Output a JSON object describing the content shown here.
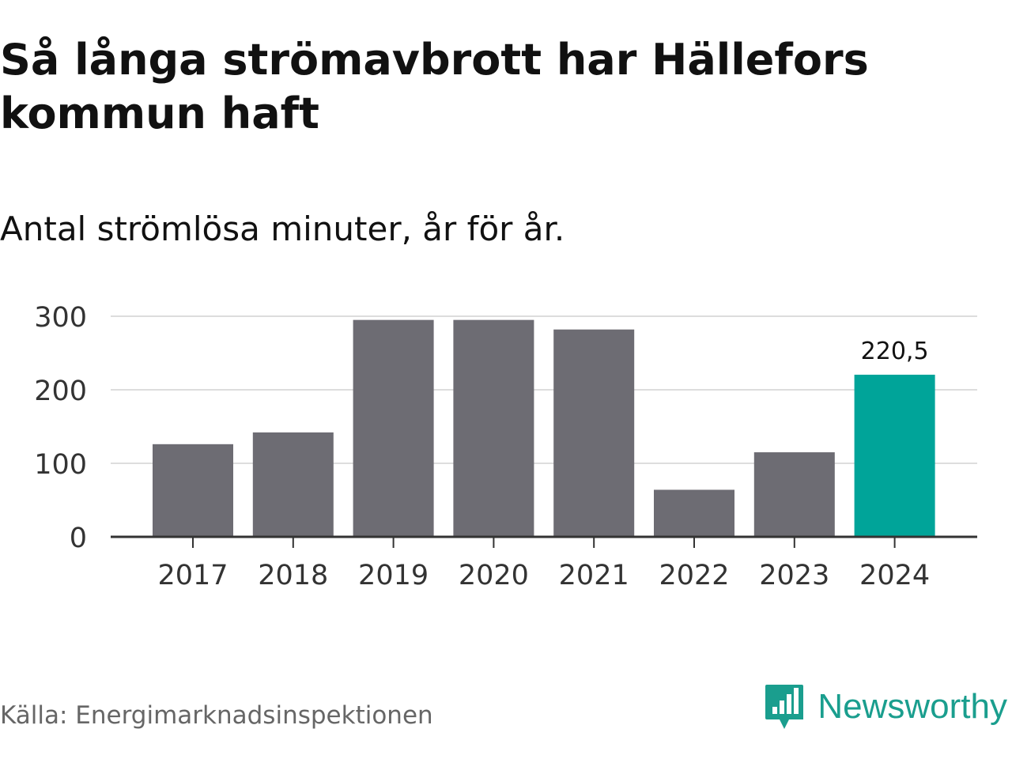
{
  "title": "Så långa strömavbrott har Hällefors kommun haft",
  "subtitle": "Antal strömlösa minuter, år för år.",
  "source": "Källa: Energimarknadsinspektionen",
  "brand": {
    "name": "Newsworthy",
    "icon": "newsworthy-logo-icon",
    "color": "#1a9e8e"
  },
  "colors": {
    "bar": "#6d6c73",
    "highlight": "#00a499",
    "grid": "#dddddd",
    "axis": "#333333"
  },
  "chart_data": {
    "type": "bar",
    "title": "Så långa strömavbrott har Hällefors kommun haft",
    "subtitle": "Antal strömlösa minuter, år för år.",
    "categories": [
      "2017",
      "2018",
      "2019",
      "2020",
      "2021",
      "2022",
      "2023",
      "2024"
    ],
    "values": [
      126,
      142,
      295,
      295,
      282,
      64,
      115,
      220.5
    ],
    "highlight_index": 7,
    "data_labels": [
      {
        "index": 7,
        "text": "220,5"
      }
    ],
    "yticks": [
      0,
      100,
      200,
      300
    ],
    "ylim": [
      0,
      300
    ],
    "grid": true,
    "xlabel": "",
    "ylabel": ""
  }
}
